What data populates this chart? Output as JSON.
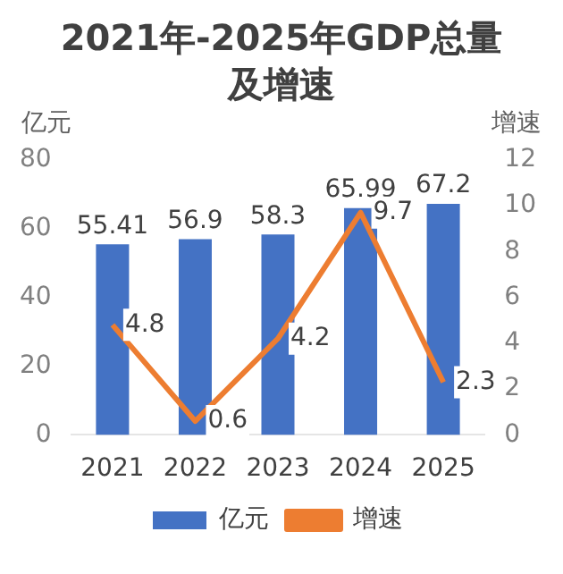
{
  "chart_data": {
    "type": "bar",
    "title": "2021年-2025年GDP总量及增速",
    "ylabel": "亿元",
    "y2label": "增速",
    "categories": [
      "2021",
      "2022",
      "2023",
      "2024",
      "2025"
    ],
    "series": [
      {
        "name": "亿元",
        "color": "#4472c4",
        "values": [
          55.41,
          56.9,
          58.3,
          65.99,
          67.2
        ]
      },
      {
        "name": "增速",
        "type": "line",
        "axis": "y2",
        "color": "#ed7d31",
        "marker": "none",
        "values": [
          4.8,
          0.6,
          4.2,
          9.7,
          2.3
        ]
      }
    ],
    "ylim": [
      0,
      80
    ],
    "yticks": [
      0,
      20,
      40,
      60,
      80
    ],
    "y2lim": [
      0,
      12
    ],
    "y2ticks": [
      0,
      2,
      4,
      6,
      8,
      10,
      12
    ],
    "data_labels": true,
    "legend": "bottom",
    "grid": false
  }
}
